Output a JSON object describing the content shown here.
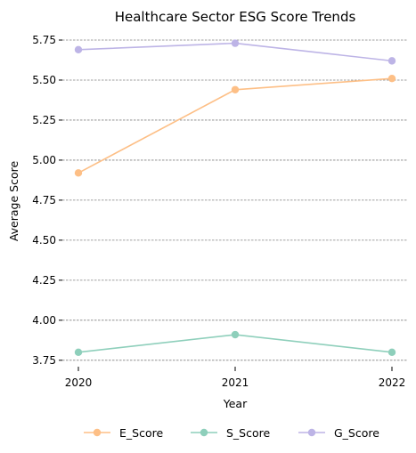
{
  "chart_data": {
    "type": "line",
    "title": "Healthcare Sector ESG Score Trends",
    "xlabel": "Year",
    "ylabel": "Average Score",
    "categories": [
      "2020",
      "2021",
      "2022"
    ],
    "ylim": [
      3.71,
      5.8
    ],
    "yticks": [
      "3.75",
      "4.00",
      "4.25",
      "4.50",
      "4.75",
      "5.00",
      "5.25",
      "5.50",
      "5.75"
    ],
    "grid": "horizontal-dashed",
    "legend_position": "bottom-center",
    "series": [
      {
        "name": "E_Score",
        "values": [
          4.92,
          5.44,
          5.51
        ],
        "color": "#fdbf86"
      },
      {
        "name": "S_Score",
        "values": [
          3.8,
          3.91,
          3.8
        ],
        "color": "#8ecfbb"
      },
      {
        "name": "G_Score",
        "values": [
          5.69,
          5.73,
          5.62
        ],
        "color": "#bdb4e6"
      }
    ]
  }
}
